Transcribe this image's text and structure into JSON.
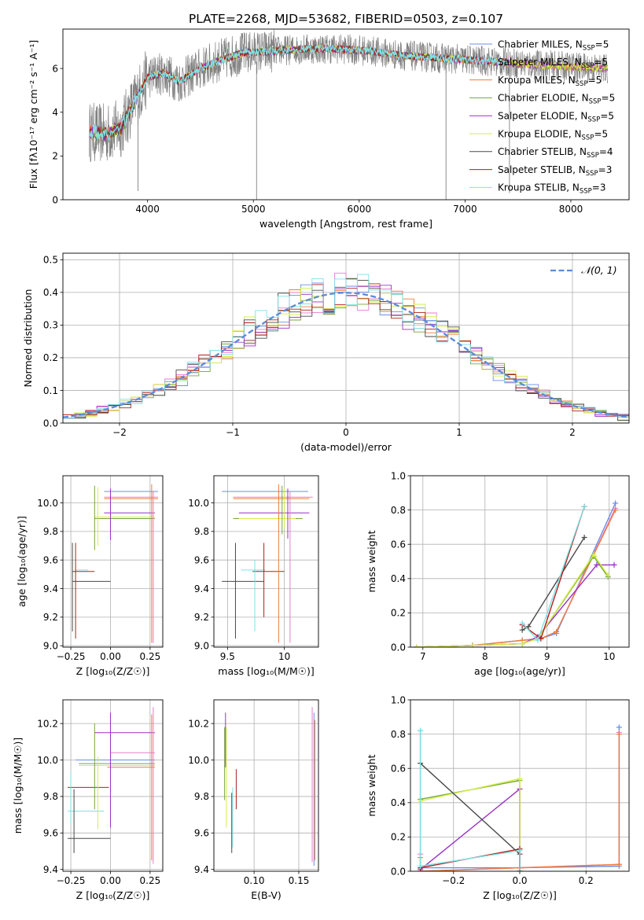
{
  "title": "PLATE=2268, MJD=53682, FIBERID=0503, z=0.107",
  "series": [
    {
      "name": "Chabrier MILES, N",
      "sub": "SSP",
      "tail": "=5",
      "color": "#6b8ee8"
    },
    {
      "name": "Salpeter MILES, N",
      "sub": "SSP",
      "tail": "=5",
      "color": "#e87bd0"
    },
    {
      "name": "Kroupa MILES, N",
      "sub": "SSP",
      "tail": "=5",
      "color": "#ee7d3a"
    },
    {
      "name": "Chabrier ELODIE, N",
      "sub": "SSP",
      "tail": "=5",
      "color": "#74a83a"
    },
    {
      "name": "Salpeter ELODIE, N",
      "sub": "SSP",
      "tail": "=5",
      "color": "#9b30c8"
    },
    {
      "name": "Kroupa ELODIE, N",
      "sub": "SSP",
      "tail": "=5",
      "color": "#d6ee48"
    },
    {
      "name": "Chabrier STELIB, N",
      "sub": "SSP",
      "tail": "=4",
      "color": "#4a4a4a"
    },
    {
      "name": "Salpeter STELIB, N",
      "sub": "SSP",
      "tail": "=3",
      "color": "#b31e1e"
    },
    {
      "name": "Kroupa STELIB, N",
      "sub": "SSP",
      "tail": "=3",
      "color": "#7ee2e6"
    }
  ],
  "chart_data": [
    {
      "id": "spectrum",
      "type": "line",
      "xlabel": "wavelength [Angstrom, rest frame]",
      "ylabel": "Flux [fλ10⁻¹⁷ erg cm⁻² s⁻¹ A⁻¹]",
      "xlim": [
        3200,
        8550
      ],
      "ylim": [
        0,
        7.8
      ],
      "xticks": [
        4000,
        5000,
        6000,
        7000,
        8000
      ],
      "yticks": [
        0,
        2,
        4,
        6
      ],
      "grid": false,
      "legend": "right",
      "continuum_x": [
        3450,
        3600,
        3750,
        3900,
        4000,
        4150,
        4300,
        4500,
        4700,
        4900,
        5200,
        5500,
        5800,
        6100,
        6400,
        6700,
        7000,
        7300,
        7600,
        7900,
        8300
      ],
      "continuum_y": [
        3.1,
        3.0,
        3.3,
        4.7,
        5.6,
        5.8,
        5.4,
        6.0,
        6.4,
        6.7,
        6.8,
        6.9,
        6.9,
        6.8,
        6.6,
        6.5,
        6.4,
        6.3,
        6.2,
        6.1,
        6.0
      ]
    },
    {
      "id": "residuals",
      "type": "bar",
      "xlabel": "(data-model)/error",
      "ylabel": "Normed distribution",
      "xlim": [
        -2.5,
        2.5
      ],
      "ylim": [
        0,
        0.52
      ],
      "xticks": [
        -2,
        -1,
        0,
        1,
        2
      ],
      "yticks": [
        0.0,
        0.1,
        0.2,
        0.3,
        0.4,
        0.5
      ],
      "grid": true,
      "legend": "top-right",
      "legend_label": "𝒩(0, 1)",
      "bin_width": 0.1,
      "reference_curve": "normal(0,1)"
    },
    {
      "id": "age-vs-Z",
      "type": "scatter",
      "xlabel": "Z [log₁₀(Z/Z☉)]",
      "ylabel": "age  [log₁₀(age/yr)]",
      "xlim": [
        -0.3,
        0.33
      ],
      "ylim": [
        8.99,
        10.19
      ],
      "xticks": [
        -0.25,
        0.0,
        0.25
      ],
      "xticklabels": [
        "−0.25",
        "0.00",
        "0.25"
      ],
      "yticks": [
        9.0,
        9.2,
        9.4,
        9.6,
        9.8,
        10.0
      ],
      "grid": true,
      "points": [
        {
          "x": 0.13,
          "y": 10.08,
          "xerr": 0.17,
          "yerr_lo": 0.0,
          "yerr_hi": 0.0
        },
        {
          "x": 0.13,
          "y": 10.04,
          "xerr": 0.17,
          "yerr_lo": 0.0,
          "yerr_hi": 0.0
        },
        {
          "x": 0.13,
          "y": 10.03,
          "xerr": 0.17,
          "yerr_lo": 0.0,
          "yerr_hi": 0.0
        },
        {
          "x": 0.09,
          "y": 9.89,
          "xerr": 0.19,
          "yerr_lo": 0.0,
          "yerr_hi": 0.0
        },
        {
          "x": 0.12,
          "y": 9.93,
          "xerr": 0.16,
          "yerr_lo": 0.0,
          "yerr_hi": 0.0
        },
        {
          "x": 0.09,
          "y": 9.9,
          "xerr": 0.19,
          "yerr_lo": 0.0,
          "yerr_hi": 0.0
        },
        {
          "x": -0.12,
          "y": 9.45,
          "xerr": 0.12,
          "yerr_lo": 0.0,
          "yerr_hi": 0.0
        },
        {
          "x": -0.17,
          "y": 9.52,
          "xerr": 0.07,
          "yerr_lo": 0.0,
          "yerr_hi": 0.0
        },
        {
          "x": -0.18,
          "y": 9.53,
          "xerr": 0.04,
          "yerr_lo": 0.0,
          "yerr_hi": 0.0
        }
      ],
      "vlines": [
        {
          "x": -0.24,
          "y0": 9.1,
          "y1": 9.72,
          "c": 6
        },
        {
          "x": -0.22,
          "y0": 9.05,
          "y1": 9.72,
          "c": 7
        },
        {
          "x": -0.1,
          "y0": 9.67,
          "y1": 10.12,
          "c": 3
        },
        {
          "x": 0.0,
          "y0": 9.74,
          "y1": 10.1,
          "c": 4
        },
        {
          "x": 0.26,
          "y0": 9.02,
          "y1": 10.13,
          "c": 2
        },
        {
          "x": 0.27,
          "y0": 9.02,
          "y1": 10.08,
          "c": 1
        },
        {
          "x": -0.08,
          "y0": 9.7,
          "y1": 10.11,
          "c": 5
        }
      ]
    },
    {
      "id": "age-vs-mass",
      "type": "scatter",
      "xlabel": "mass [log₁₀(M/M☉)]",
      "ylabel": "",
      "xlim": [
        9.38,
        10.3
      ],
      "ylim": [
        8.99,
        10.19
      ],
      "xticks": [
        9.5,
        10.0
      ],
      "yticks": [
        9.0,
        9.2,
        9.4,
        9.6,
        9.8,
        10.0
      ],
      "grid": true
    },
    {
      "id": "weight-vs-age",
      "type": "line",
      "xlabel": "age  [log₁₀(age/yr)]",
      "ylabel": "mass weight",
      "xlim": [
        6.8,
        10.32
      ],
      "ylim": [
        0.0,
        1.0
      ],
      "xticks": [
        7,
        8,
        9,
        10
      ],
      "yticks": [
        0.0,
        0.2,
        0.4,
        0.6,
        0.8,
        1.0
      ],
      "grid": true,
      "lines": [
        {
          "c": 0,
          "x": [
            6.9,
            7.8,
            8.6,
            8.9,
            9.15,
            10.1
          ],
          "y": [
            0.0,
            0.01,
            0.04,
            0.05,
            0.08,
            0.84
          ]
        },
        {
          "c": 1,
          "x": [
            6.9,
            7.8,
            8.6,
            8.9,
            9.15,
            10.1
          ],
          "y": [
            0.0,
            0.01,
            0.04,
            0.05,
            0.09,
            0.81
          ]
        },
        {
          "c": 2,
          "x": [
            6.9,
            7.8,
            8.6,
            8.9,
            9.15,
            10.1
          ],
          "y": [
            0.0,
            0.01,
            0.04,
            0.05,
            0.09,
            0.8
          ]
        },
        {
          "c": 3,
          "x": [
            6.9,
            7.8,
            8.6,
            8.85,
            9.75,
            9.98
          ],
          "y": [
            0.0,
            0.01,
            0.02,
            0.05,
            0.53,
            0.41
          ]
        },
        {
          "c": 4,
          "x": [
            6.9,
            7.8,
            8.6,
            8.85,
            9.8,
            10.08
          ],
          "y": [
            0.0,
            0.01,
            0.02,
            0.06,
            0.48,
            0.48
          ]
        },
        {
          "c": 5,
          "x": [
            6.9,
            7.8,
            8.6,
            8.85,
            9.75,
            9.98
          ],
          "y": [
            0.0,
            0.01,
            0.02,
            0.05,
            0.54,
            0.42
          ]
        },
        {
          "c": 6,
          "x": [
            8.6,
            8.7,
            9.6
          ],
          "y": [
            0.1,
            0.12,
            0.64
          ]
        },
        {
          "c": 7,
          "x": [
            8.6,
            8.9,
            9.6
          ],
          "y": [
            0.13,
            0.05,
            0.82
          ]
        },
        {
          "c": 8,
          "x": [
            8.6,
            8.85,
            9.6
          ],
          "y": [
            0.14,
            0.04,
            0.82
          ]
        }
      ]
    },
    {
      "id": "mass-vs-Z",
      "type": "scatter",
      "xlabel": "Z [log₁₀(Z/Z☉)]",
      "ylabel": "mass [log₁₀(M/M☉)]",
      "xlim": [
        -0.3,
        0.33
      ],
      "ylim": [
        9.39,
        10.33
      ],
      "xticks": [
        -0.25,
        0.0,
        0.25
      ],
      "xticklabels": [
        "−0.25",
        "0.00",
        "0.25"
      ],
      "yticks": [
        9.4,
        9.6,
        9.8,
        10.0,
        10.2
      ],
      "grid": true
    },
    {
      "id": "mass-vs-EBV",
      "type": "scatter",
      "xlabel": "E(B-V)",
      "ylabel": "",
      "xlim": [
        0.055,
        0.172
      ],
      "ylim": [
        9.39,
        10.33
      ],
      "xticks": [
        0.1,
        0.15
      ],
      "xticklabels": [
        "0.10",
        "0.15"
      ],
      "yticks": [
        9.4,
        9.6,
        9.8,
        10.0,
        10.2
      ],
      "grid": true
    },
    {
      "id": "weight-vs-Z",
      "type": "line",
      "xlabel": "Z [log₁₀(Z/Z☉)]",
      "ylabel": "mass weight",
      "xlim": [
        -0.33,
        0.33
      ],
      "ylim": [
        0.0,
        1.0
      ],
      "xticks": [
        -0.2,
        0.0,
        0.2
      ],
      "xticklabels": [
        "−0.2",
        "0.0",
        "0.2"
      ],
      "yticks": [
        0.0,
        0.2,
        0.4,
        0.6,
        0.8,
        1.0
      ],
      "grid": true,
      "lines": [
        {
          "c": 0,
          "x": [
            -0.3,
            -0.3,
            0.0,
            0.3,
            0.3
          ],
          "y": [
            0.82,
            0.02,
            0.02,
            0.03,
            0.84
          ]
        },
        {
          "c": 1,
          "x": [
            -0.3,
            -0.3,
            0.0,
            0.3,
            0.3
          ],
          "y": [
            0.1,
            0.0,
            0.02,
            0.04,
            0.81
          ]
        },
        {
          "c": 2,
          "x": [
            -0.3,
            -0.3,
            0.0,
            0.3,
            0.3
          ],
          "y": [
            0.08,
            0.0,
            0.02,
            0.04,
            0.8
          ]
        },
        {
          "c": 3,
          "x": [
            -0.3,
            0.0,
            0.0
          ],
          "y": [
            0.42,
            0.53,
            0.0
          ]
        },
        {
          "c": 4,
          "x": [
            -0.3,
            0.0,
            0.0
          ],
          "y": [
            0.01,
            0.48,
            0.0
          ]
        },
        {
          "c": 5,
          "x": [
            -0.3,
            0.0,
            0.0
          ],
          "y": [
            0.41,
            0.54,
            0.0
          ]
        },
        {
          "c": 6,
          "x": [
            -0.3,
            0.0,
            0.0
          ],
          "y": [
            0.63,
            0.1,
            0.0
          ]
        },
        {
          "c": 7,
          "x": [
            -0.3,
            0.0,
            0.0
          ],
          "y": [
            0.02,
            0.13,
            0.0
          ]
        },
        {
          "c": 8,
          "x": [
            -0.3,
            -0.3,
            0.0,
            0.0
          ],
          "y": [
            0.82,
            0.03,
            0.12,
            0.0
          ]
        }
      ]
    }
  ]
}
